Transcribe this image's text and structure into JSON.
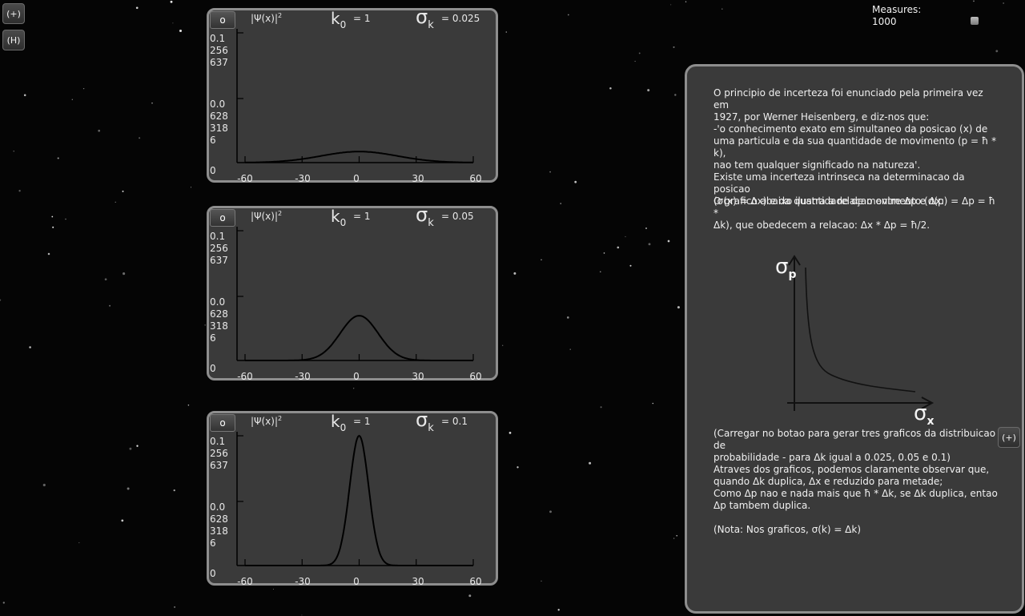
{
  "controls": {
    "zoom_in_label": "(+)",
    "help_label": "(H)",
    "right_zoom_label": "(+)"
  },
  "measures": {
    "label": "Measures:",
    "value": "1000"
  },
  "panels": [
    {
      "button_label": "o",
      "psi_label": "|Ψ(x)|",
      "psi_exp": "2",
      "k0_symbol": "k",
      "k0_sub": "0",
      "k0_value": "= 1",
      "sigma_symbol": "σ",
      "sigma_sub": "k",
      "sigma_value": "= 0.025",
      "y_top": [
        "0.1",
        "256",
        "637"
      ],
      "y_mid": [
        "0.0",
        "628",
        "318",
        "6"
      ],
      "y_zero": "0",
      "x_ticks": [
        "-60",
        "-30",
        "0",
        "30",
        "60"
      ]
    },
    {
      "button_label": "o",
      "psi_label": "|Ψ(x)|",
      "psi_exp": "2",
      "k0_symbol": "k",
      "k0_sub": "0",
      "k0_value": "= 1",
      "sigma_symbol": "σ",
      "sigma_sub": "k",
      "sigma_value": "= 0.05",
      "y_top": [
        "0.1",
        "256",
        "637"
      ],
      "y_mid": [
        "0.0",
        "628",
        "318",
        "6"
      ],
      "y_zero": "0",
      "x_ticks": [
        "-60",
        "-30",
        "0",
        "30",
        "60"
      ]
    },
    {
      "button_label": "o",
      "psi_label": "|Ψ(x)|",
      "psi_exp": "2",
      "k0_symbol": "k",
      "k0_sub": "0",
      "k0_value": "= 1",
      "sigma_symbol": "σ",
      "sigma_sub": "k",
      "sigma_value": "= 0.1",
      "y_top": [
        "0.1",
        "256",
        "637"
      ],
      "y_mid": [
        "0.0",
        "628",
        "318",
        "6"
      ],
      "y_zero": "0",
      "x_ticks": [
        "-60",
        "-30",
        "0",
        "30",
        "60"
      ]
    }
  ],
  "curves": [
    {
      "sigma_k": 0.025,
      "peak_fraction": 0.085
    },
    {
      "sigma_k": 0.05,
      "peak_fraction": 0.345
    },
    {
      "sigma_k": 0.1,
      "peak_fraction": 1.0
    }
  ],
  "info": {
    "para1": [
      "O principio de incerteza foi enunciado pela primeira vez em",
      "1927, por Werner Heisenberg, e diz-nos que:",
      "-'o conhecimento exato em simultaneo da posicao (x) de",
      "uma particula e da sua quantidade de movimento (p = ħ * k),",
      "nao tem qualquer significado na natureza'.",
      "Existe uma incerteza intrinseca na determinacao da posicao",
      "(σ(x) = Δx) e da quantidade de movimento (σ(p) = Δp = ħ *",
      "Δk), que obedecem a relacao: Δx * Δp = ħ/2."
    ],
    "para2": "O grafico abaixo ilustra a relaçao entre Δp e Δx:",
    "sigma_p_label": "σ",
    "sigma_p_sub": "p",
    "sigma_x_label": "σ",
    "sigma_x_sub": "x",
    "para3": [
      "(Carregar no botao para gerar tres graficos da distribuicao de",
      "probabilidade - para Δk igual a 0.025, 0.05 e 0.1)"
    ],
    "para4": [
      "Atraves dos graficos, podemos claramente observar que,",
      "quando Δk duplica, Δx e reduzido para metade;",
      "Como Δp nao e nada mais que ħ * Δk, se Δk duplica, entao",
      "Δp tambem duplica."
    ],
    "para5": "(Nota: Nos graficos, σ(k) = Δk)"
  }
}
